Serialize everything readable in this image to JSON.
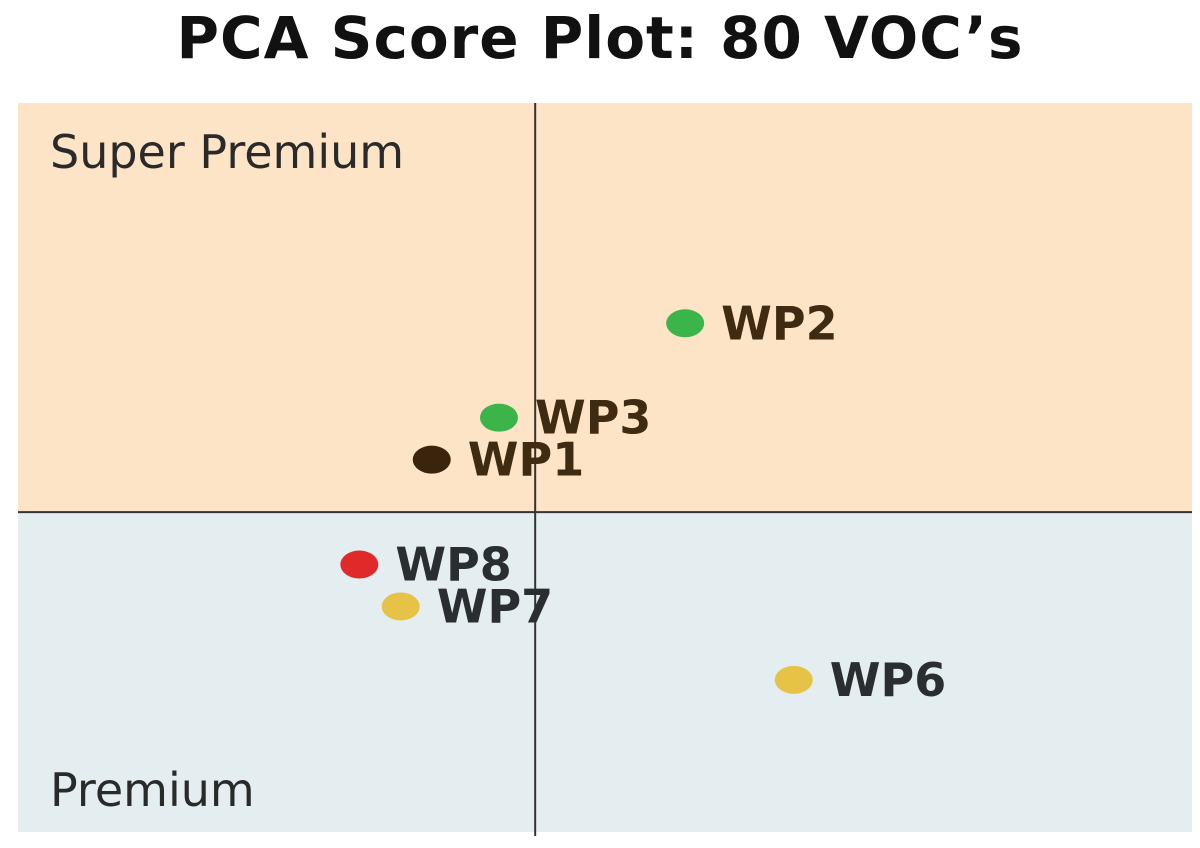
{
  "chart_data": {
    "type": "scatter",
    "title": "PCA Score Plot: 80 VOC’s",
    "xlabel": "",
    "ylabel": "",
    "xlim": [
      -10,
      12.7
    ],
    "ylim": [
      -6.1,
      7.8
    ],
    "grid": false,
    "legend": "none",
    "regions": [
      {
        "label": "Super Premium",
        "y_from": 0,
        "y_to": 7.8,
        "color": "#fde4c7"
      },
      {
        "label": "Premium",
        "y_from": -6.1,
        "y_to": 0,
        "color": "#e4eef1"
      }
    ],
    "points": [
      {
        "label": "WP2",
        "x": 2.9,
        "y": 3.6,
        "color": "#3bb44a",
        "label_color": "#3f2a12"
      },
      {
        "label": "WP3",
        "x": -0.7,
        "y": 1.8,
        "color": "#3bb44a",
        "label_color": "#3f2a12"
      },
      {
        "label": "WP1",
        "x": -2.0,
        "y": 1.0,
        "color": "#3a240b",
        "label_color": "#3f2a12"
      },
      {
        "label": "WP8",
        "x": -3.4,
        "y": -1.0,
        "color": "#e02a2a",
        "label_color": "#2a2e30"
      },
      {
        "label": "WP7",
        "x": -2.6,
        "y": -1.8,
        "color": "#e6c247",
        "label_color": "#2a2e30"
      },
      {
        "label": "WP6",
        "x": 5.0,
        "y": -3.2,
        "color": "#e6c247",
        "label_color": "#2a2e30"
      }
    ]
  }
}
